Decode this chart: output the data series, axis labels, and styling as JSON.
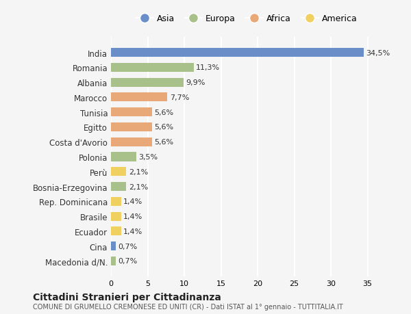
{
  "countries": [
    "India",
    "Romania",
    "Albania",
    "Marocco",
    "Tunisia",
    "Egitto",
    "Costa d'Avorio",
    "Polonia",
    "Perù",
    "Bosnia-Erzegovina",
    "Rep. Dominicana",
    "Brasile",
    "Ecuador",
    "Cina",
    "Macedonia d/N."
  ],
  "values": [
    34.5,
    11.3,
    9.9,
    7.7,
    5.6,
    5.6,
    5.6,
    3.5,
    2.1,
    2.1,
    1.4,
    1.4,
    1.4,
    0.7,
    0.7
  ],
  "labels": [
    "34,5%",
    "11,3%",
    "9,9%",
    "7,7%",
    "5,6%",
    "5,6%",
    "5,6%",
    "3,5%",
    "2,1%",
    "2,1%",
    "1,4%",
    "1,4%",
    "1,4%",
    "0,7%",
    "0,7%"
  ],
  "continents": [
    "Asia",
    "Europa",
    "Europa",
    "Africa",
    "Africa",
    "Africa",
    "Africa",
    "Europa",
    "America",
    "Europa",
    "America",
    "America",
    "America",
    "Asia",
    "Europa"
  ],
  "continent_colors": {
    "Asia": "#6a8fc8",
    "Europa": "#a8c08a",
    "Africa": "#e8a878",
    "America": "#f0d060"
  },
  "legend_order": [
    "Asia",
    "Europa",
    "Africa",
    "America"
  ],
  "title": "Cittadini Stranieri per Cittadinanza",
  "subtitle": "COMUNE DI GRUMELLO CREMONESE ED UNITI (CR) - Dati ISTAT al 1° gennaio - TUTTITALIA.IT",
  "xlim": [
    0,
    37
  ],
  "xticks": [
    0,
    5,
    10,
    15,
    20,
    25,
    30,
    35
  ],
  "background_color": "#f5f5f5",
  "grid_color": "#ffffff",
  "bar_height": 0.6
}
